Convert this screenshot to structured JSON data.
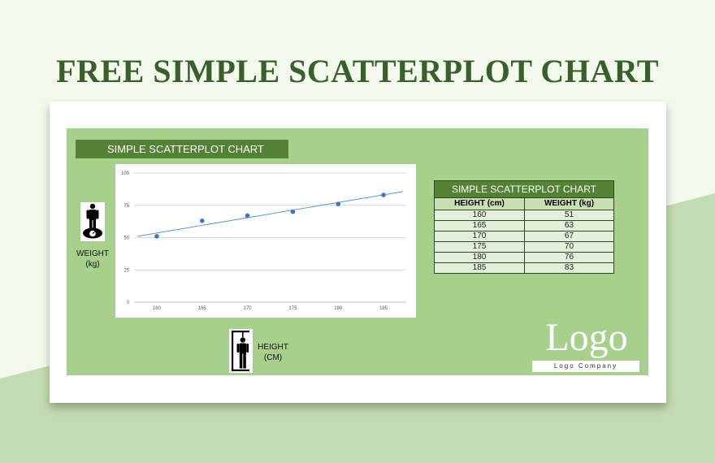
{
  "page": {
    "title": "FREE SIMPLE SCATTERPLOT CHART"
  },
  "colors": {
    "background": "#f3f9ec",
    "background_shape": "#c3dbb0",
    "title": "#38602a",
    "panel": "#a8d08d",
    "header": "#548235",
    "marker": "#4472c4",
    "trendline": "#5b9bd5"
  },
  "panel": {
    "header": "SIMPLE SCATTERPLOT CHART",
    "weight_label_1": "WEIGHT",
    "weight_label_2": "(kg)",
    "height_label_1": "HEIGHT",
    "height_label_2": "(CM)",
    "weight_icon": "person-on-scale-icon",
    "height_icon": "height-measure-icon"
  },
  "table": {
    "title": "SIMPLE SCATTERPLOT CHART",
    "headers": [
      "HEIGHT (cm)",
      "WEIGHT (kg)"
    ],
    "rows": [
      [
        "160",
        "51"
      ],
      [
        "165",
        "63"
      ],
      [
        "170",
        "67"
      ],
      [
        "175",
        "70"
      ],
      [
        "180",
        "76"
      ],
      [
        "185",
        "83"
      ]
    ]
  },
  "logo": {
    "text": "Logo",
    "subtext": "Logo Company"
  },
  "chart_data": {
    "type": "scatter",
    "x": [
      160,
      165,
      170,
      175,
      180,
      185
    ],
    "y": [
      51,
      63,
      67,
      70,
      76,
      83
    ],
    "x_ticks": [
      "160",
      "165",
      "170",
      "175",
      "180",
      "185"
    ],
    "y_ticks": [
      "0",
      "25",
      "50",
      "75",
      "100"
    ],
    "ylim": [
      0,
      100
    ],
    "trendline": "linear",
    "grid": "horizontal",
    "legend": "none"
  }
}
